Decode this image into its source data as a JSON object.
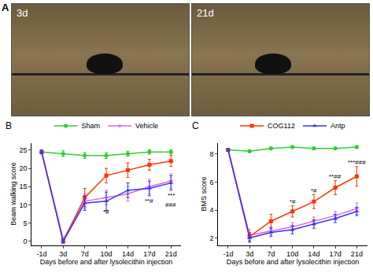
{
  "photos": {
    "label": "A",
    "captions": [
      "3d",
      "21d"
    ]
  },
  "chart_data": [
    {
      "type": "line",
      "title": "B",
      "x_label": "Days before and after lysolecithin injection",
      "y_label": "Beam walking score",
      "categories": [
        "-1d",
        "3d",
        "7d",
        "10d",
        "14d",
        "17d",
        "21d"
      ],
      "ylim": [
        -1,
        27
      ],
      "yticks": [
        0,
        5,
        10,
        15,
        20,
        25
      ],
      "legend": "top",
      "series": [
        {
          "name": "Sham",
          "color": "#33cc33",
          "marker": "circle",
          "values": [
            24.5,
            24,
            23.5,
            23.5,
            24,
            24.5,
            24.5
          ],
          "errors": [
            0.6,
            0.8,
            0.8,
            0.8,
            0.7,
            0.6,
            0.6
          ]
        },
        {
          "name": "Vehicle",
          "color": "#e066e0",
          "marker": "triangle-down",
          "values": [
            24.5,
            0.5,
            11,
            12,
            13,
            15,
            16.5
          ],
          "errors": [
            0.5,
            0.5,
            2,
            2,
            2,
            2,
            2
          ]
        },
        {
          "color": "#ff3300",
          "marker": "square",
          "values": [
            24.5,
            0,
            12,
            18,
            19.5,
            21,
            22
          ],
          "errors": [
            0.5,
            0.5,
            2.5,
            2,
            2,
            1.5,
            1.5
          ]
        },
        {
          "color": "#3333ff",
          "marker": "triangle-up",
          "values": [
            24.5,
            0,
            10.5,
            11,
            14,
            14.5,
            16
          ],
          "errors": [
            0.5,
            0.5,
            2,
            2.5,
            2,
            2,
            2
          ]
        }
      ],
      "annotations": [
        {
          "x": "10d",
          "y": 8,
          "text": "*#"
        },
        {
          "x": "17d",
          "y": 11,
          "text": "**#"
        },
        {
          "x": "21d",
          "y": 12.5,
          "text": "***"
        },
        {
          "x": "21d",
          "y": 10,
          "text": "###"
        }
      ]
    },
    {
      "type": "line",
      "title": "C",
      "x_label": "Days before and after lysolecithin injection",
      "y_label": "BMS score",
      "categories": [
        "-1d",
        "3d",
        "7d",
        "10d",
        "14d",
        "17d",
        "21d"
      ],
      "ylim": [
        1.5,
        8.8
      ],
      "yticks": [
        2,
        4,
        6,
        8
      ],
      "legend": "top",
      "series": [
        {
          "color": "#33cc33",
          "marker": "circle",
          "values": [
            8.3,
            8.2,
            8.4,
            8.5,
            8.4,
            8.4,
            8.5
          ],
          "errors": [
            0.1,
            0.1,
            0.1,
            0.1,
            0.1,
            0.1,
            0.1
          ]
        },
        {
          "color": "#e066e0",
          "marker": "triangle-down",
          "values": [
            8.3,
            2.2,
            2.5,
            2.8,
            3.2,
            3.6,
            4.1
          ],
          "errors": [
            0.1,
            0.4,
            0.3,
            0.3,
            0.3,
            0.3,
            0.4
          ]
        },
        {
          "name": "COG112",
          "color": "#ff3300",
          "marker": "square",
          "values": [
            8.3,
            2.1,
            3.2,
            3.9,
            4.6,
            5.6,
            6.4
          ],
          "errors": [
            0.1,
            0.3,
            0.5,
            0.4,
            0.5,
            0.5,
            0.7
          ]
        },
        {
          "name": "Antp",
          "color": "#3333ff",
          "marker": "triangle-up",
          "values": [
            8.3,
            2.0,
            2.4,
            2.6,
            3.0,
            3.4,
            3.9
          ],
          "errors": [
            0.1,
            0.3,
            0.3,
            0.3,
            0.3,
            0.3,
            0.3
          ]
        }
      ],
      "annotations": [
        {
          "x": "10d",
          "y": 4.6,
          "text": "*#"
        },
        {
          "x": "14d",
          "y": 5.4,
          "text": "*#"
        },
        {
          "x": "17d",
          "y": 6.4,
          "text": "**##"
        },
        {
          "x": "21d",
          "y": 7.4,
          "text": "***###"
        }
      ]
    }
  ]
}
